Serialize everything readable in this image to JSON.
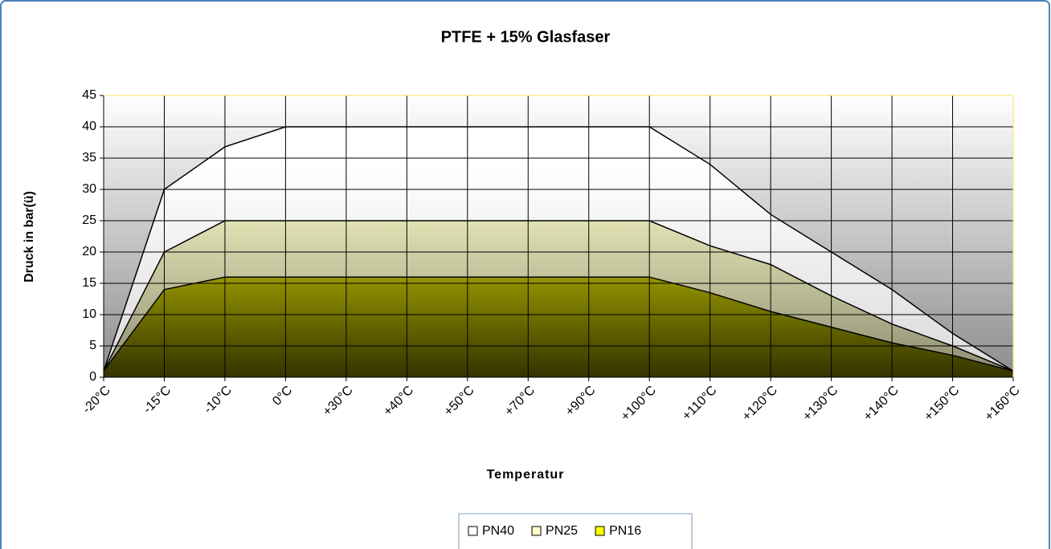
{
  "chart_data": {
    "type": "area",
    "title": "PTFE + 15% Glasfaser",
    "x_label": "Temperatur",
    "y_label": "Druck in bar(ü)",
    "categories": [
      "-20°C",
      "-15°C",
      "-10°C",
      "0°C",
      "+30°C",
      "+40°C",
      "+50°C",
      "+70°C",
      "+90°C",
      "+100°C",
      "+110°C",
      "+120°C",
      "+130°C",
      "+140°C",
      "+150°C",
      "+160°C"
    ],
    "series": [
      {
        "name": "PN40",
        "color": "#ffffff",
        "values": [
          1,
          30,
          36.8,
          40,
          40,
          40,
          40,
          40,
          40,
          40,
          34,
          26,
          20,
          14,
          7,
          1
        ]
      },
      {
        "name": "PN25",
        "color": "#ffffcc",
        "values": [
          1,
          20,
          25,
          25,
          25,
          25,
          25,
          25,
          25,
          25,
          21,
          18,
          13,
          8.5,
          5,
          1
        ]
      },
      {
        "name": "PN16",
        "color": "#ffff00",
        "values": [
          1,
          14,
          16,
          16,
          16,
          16,
          16,
          16,
          16,
          16,
          13.5,
          10.5,
          8,
          5.5,
          3.5,
          1
        ]
      }
    ],
    "ylim": [
      0,
      45
    ],
    "yticks": [
      0,
      5,
      10,
      15,
      20,
      25,
      30,
      35,
      40,
      45
    ],
    "grid": true
  }
}
